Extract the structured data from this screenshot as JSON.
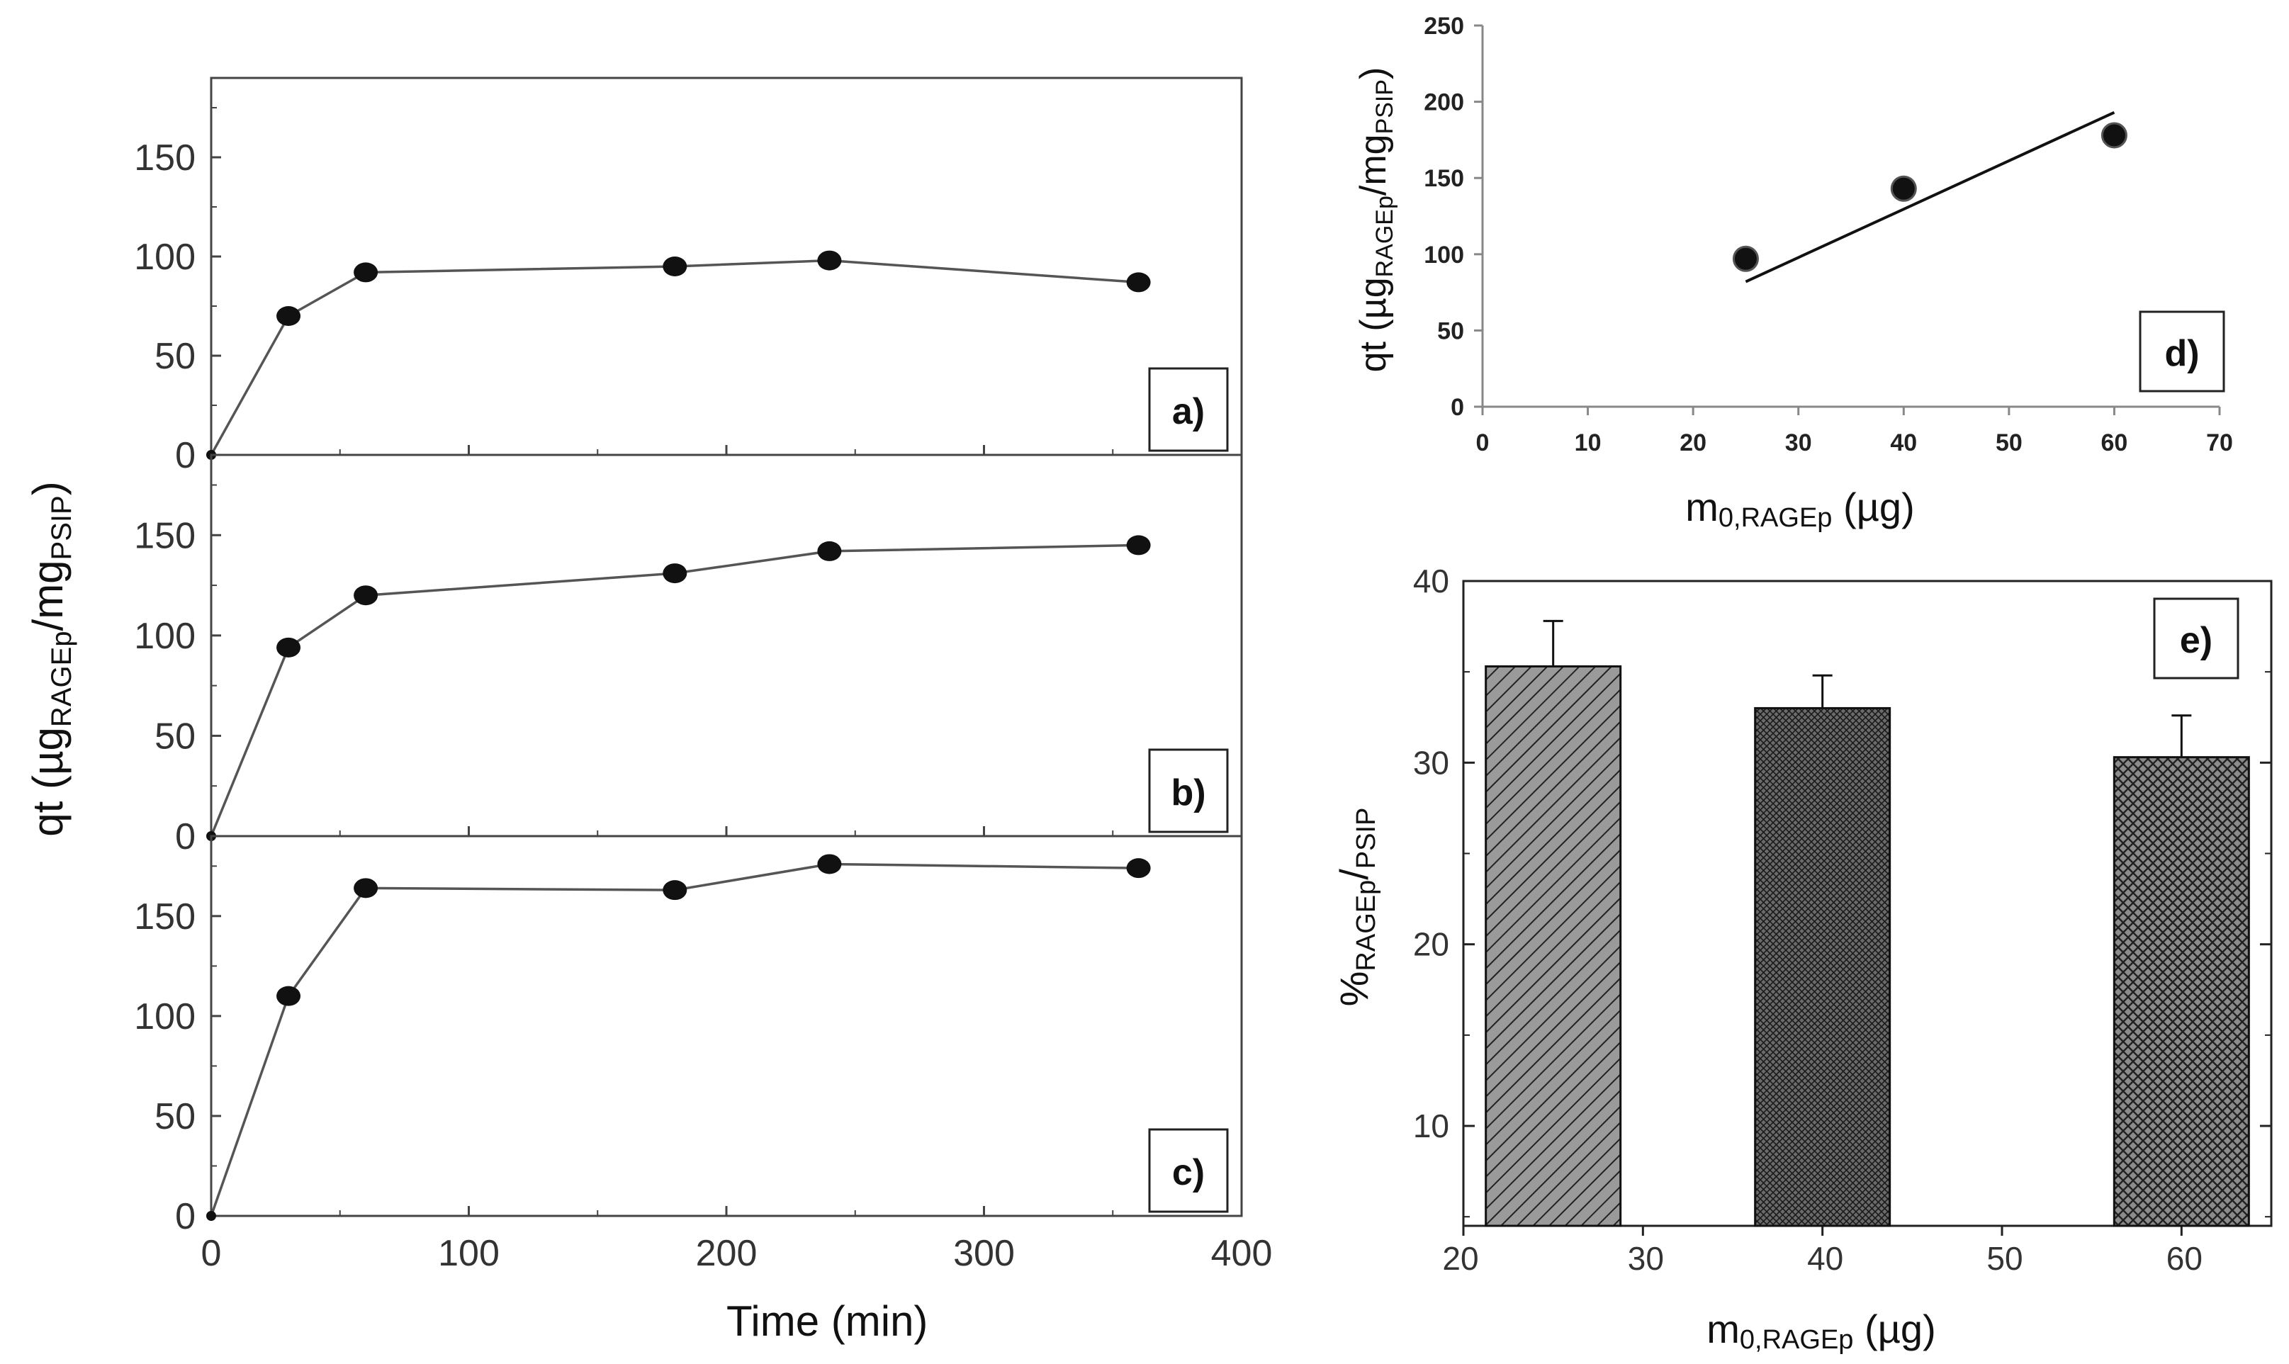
{
  "colors": {
    "ink": "#111111",
    "axis": "#333333",
    "bar_fill": "#8a8a8a",
    "bar_fill_dark": "#6e6e6e"
  },
  "chart_data": [
    {
      "id": "a",
      "type": "line",
      "panel_label": "a)",
      "x": [
        0,
        30,
        60,
        180,
        240,
        360
      ],
      "y": [
        0,
        70,
        92,
        95,
        98,
        87
      ],
      "xlim": [
        0,
        400
      ],
      "ylim": [
        0,
        190
      ],
      "yticks": [
        0,
        50,
        100,
        150
      ],
      "yticklabels": [
        "0",
        "50",
        "100",
        "150"
      ]
    },
    {
      "id": "b",
      "type": "line",
      "panel_label": "b)",
      "x": [
        0,
        30,
        60,
        180,
        240,
        360
      ],
      "y": [
        0,
        94,
        120,
        131,
        142,
        145
      ],
      "xlim": [
        0,
        400
      ],
      "ylim": [
        0,
        190
      ],
      "yticks": [
        0,
        50,
        100,
        150
      ],
      "yticklabels": [
        "0",
        "50",
        "100",
        "150"
      ]
    },
    {
      "id": "c",
      "type": "line",
      "panel_label": "c)",
      "x": [
        0,
        30,
        60,
        180,
        240,
        360
      ],
      "y": [
        0,
        110,
        164,
        163,
        176,
        174
      ],
      "xlim": [
        0,
        400
      ],
      "ylim": [
        0,
        190
      ],
      "yticks": [
        0,
        50,
        100,
        150
      ],
      "yticklabels": [
        "0",
        "50",
        "100",
        "150"
      ],
      "xticks": [
        0,
        100,
        200,
        300,
        400
      ],
      "xticklabels": [
        "0",
        "100",
        "200",
        "300",
        "400"
      ],
      "xlabel": "Time (min)"
    },
    {
      "id": "d",
      "type": "scatter",
      "panel_label": "d)",
      "x": [
        25,
        40,
        60
      ],
      "y": [
        97,
        143,
        178
      ],
      "fit_line": {
        "x": [
          25,
          60
        ],
        "y": [
          82,
          193
        ]
      },
      "xlim": [
        0,
        70
      ],
      "ylim": [
        0,
        250
      ],
      "xticks": [
        0,
        10,
        20,
        30,
        40,
        50,
        60,
        70
      ],
      "xticklabels": [
        "0",
        "10",
        "20",
        "30",
        "40",
        "50",
        "60",
        "70"
      ],
      "yticks": [
        0,
        50,
        100,
        150,
        200,
        250
      ],
      "yticklabels": [
        "0",
        "50",
        "100",
        "150",
        "200",
        "250"
      ],
      "xlabel": {
        "main": "m",
        "sub": "0,RAGEp",
        "unit": " (µg)"
      },
      "ylabel": {
        "main": "qt (µg",
        "sub1": "RAGEp",
        "mid": "/mg",
        "sub2": "PSIP",
        "end": ")"
      }
    },
    {
      "id": "e",
      "type": "bar",
      "panel_label": "e)",
      "categories": [
        "25",
        "40",
        "60"
      ],
      "x": [
        25,
        40,
        60
      ],
      "values": [
        35.3,
        33.0,
        30.3
      ],
      "errors": [
        2.5,
        1.8,
        2.3
      ],
      "bar_width": 7.5,
      "patterns": [
        "diagonal-hatch",
        "fine-crosshatch",
        "crosshatch"
      ],
      "xlim": [
        20,
        65
      ],
      "ylim": [
        4.5,
        40
      ],
      "xticks": [
        20,
        30,
        40,
        50,
        60
      ],
      "xticklabels": [
        "20",
        "30",
        "40",
        "50",
        "60"
      ],
      "yticks": [
        10,
        20,
        30,
        40
      ],
      "yticklabels": [
        "10",
        "20",
        "30",
        "40"
      ],
      "xlabel": {
        "main": "m",
        "sub": "0,RAGEp",
        "unit": " (µg)"
      },
      "ylabel": {
        "main": "%",
        "sub1": "RAGEp",
        "mid": "/",
        "sub2": "PSIP"
      }
    }
  ],
  "shared_ylabel": {
    "main": "qt (µg",
    "sub1": "RAGEp",
    "mid": "/mg",
    "sub2": "PSIP",
    "end": ")"
  }
}
